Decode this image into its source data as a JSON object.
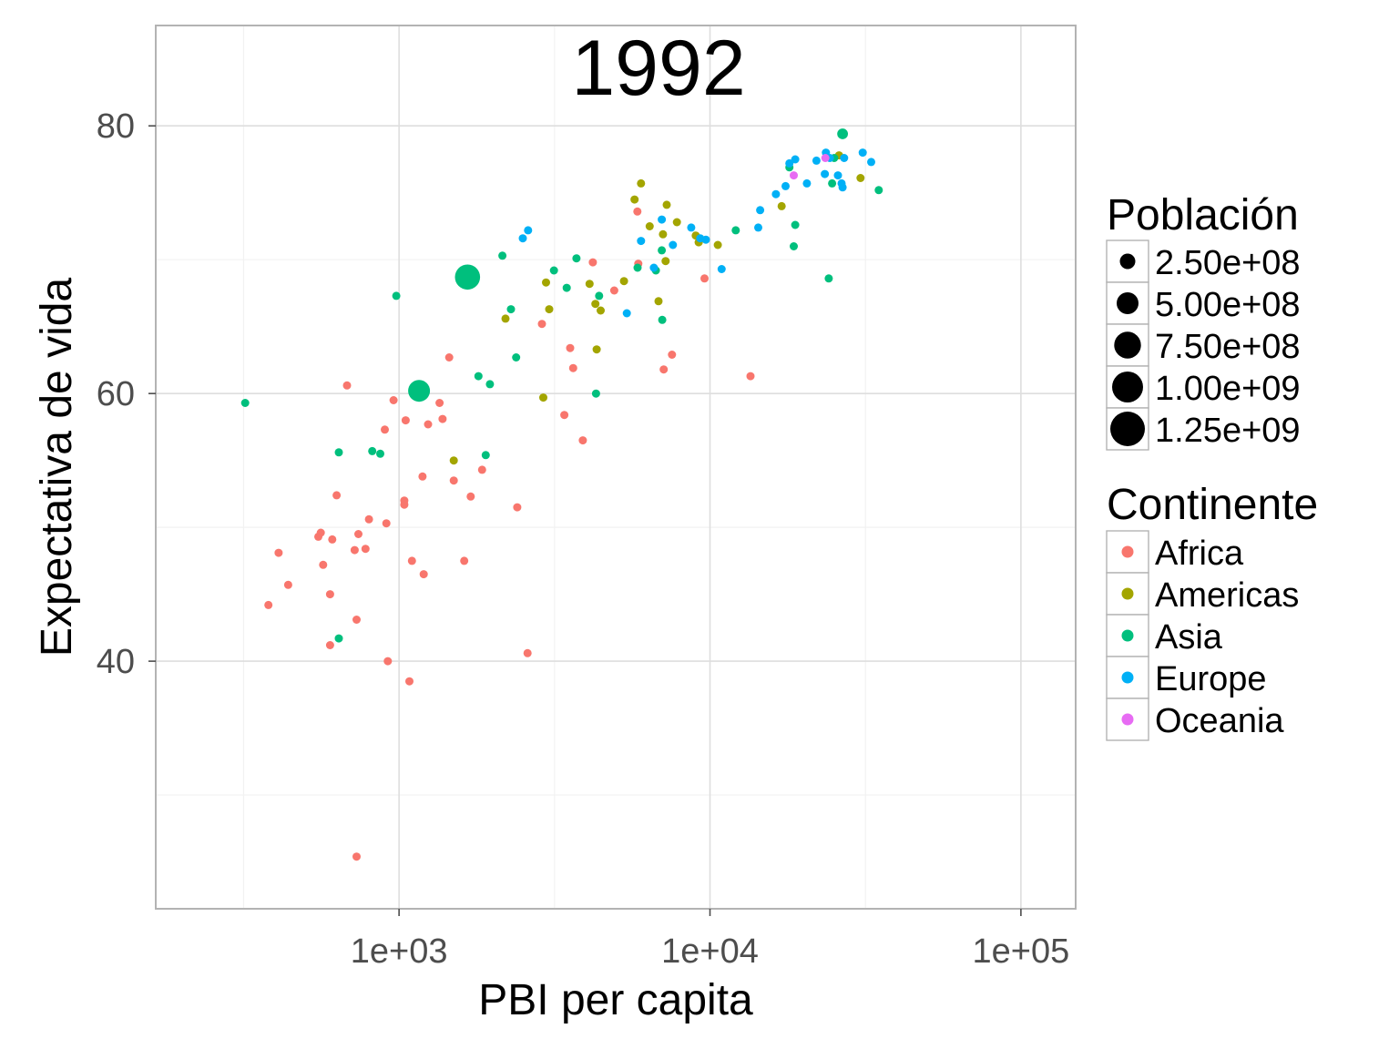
{
  "chart_data": {
    "type": "scatter",
    "title": "1992",
    "xlabel": "PBI per capita",
    "ylabel": "Expectativa de vida",
    "x_scale": "log10",
    "xlim": [
      165,
      150000
    ],
    "ylim": [
      21.5,
      87.5
    ],
    "x_ticks": [
      1000,
      10000,
      100000
    ],
    "x_tick_labels": [
      "1e+03",
      "1e+04",
      "1e+05"
    ],
    "y_ticks": [
      40,
      60,
      80
    ],
    "y_tick_labels": [
      "40",
      "60",
      "80"
    ],
    "grid": true,
    "legend_placement": "right",
    "size_legend": {
      "title": "Población",
      "values": [
        250000000,
        500000000,
        750000000,
        1000000000,
        1250000000
      ],
      "labels": [
        "2.50e+08",
        "5.00e+08",
        "7.50e+08",
        "1.00e+09",
        "1.25e+09"
      ]
    },
    "color_legend": {
      "title": "Continente",
      "entries": [
        {
          "label": "Africa",
          "color": "#F8766D"
        },
        {
          "label": "Americas",
          "color": "#A3A500"
        },
        {
          "label": "Asia",
          "color": "#00BF7D"
        },
        {
          "label": "Europe",
          "color": "#00B0F6"
        },
        {
          "label": "Oceania",
          "color": "#E76BF3"
        }
      ]
    },
    "series": [
      {
        "name": "Africa",
        "color": "#F8766D",
        "points": [
          [
            730,
            25.4,
            6
          ],
          [
            380,
            44.2,
            14
          ],
          [
            410,
            48.1,
            22
          ],
          [
            440,
            45.7,
            25
          ],
          [
            550,
            49.3,
            20
          ],
          [
            560,
            49.6,
            10
          ],
          [
            570,
            47.2,
            12
          ],
          [
            600,
            45.0,
            9
          ],
          [
            600,
            41.2,
            12
          ],
          [
            610,
            49.1,
            11
          ],
          [
            630,
            52.4,
            5
          ],
          [
            680,
            60.6,
            12
          ],
          [
            720,
            48.3,
            9
          ],
          [
            730,
            43.1,
            6
          ],
          [
            740,
            49.5,
            5
          ],
          [
            780,
            48.4,
            8
          ],
          [
            800,
            50.6,
            13
          ],
          [
            900,
            57.3,
            10
          ],
          [
            910,
            50.3,
            10
          ],
          [
            920,
            40.0,
            12
          ],
          [
            960,
            59.5,
            4
          ],
          [
            1040,
            51.7,
            13
          ],
          [
            1040,
            52.0,
            12
          ],
          [
            1050,
            58.0,
            6
          ],
          [
            1080,
            38.5,
            3
          ],
          [
            1100,
            47.5,
            4
          ],
          [
            1190,
            53.8,
            10
          ],
          [
            1200,
            46.5,
            4
          ],
          [
            1240,
            57.7,
            4
          ],
          [
            1350,
            59.3,
            18
          ],
          [
            1380,
            58.1,
            10
          ],
          [
            1450,
            62.7,
            4
          ],
          [
            1500,
            53.5,
            11
          ],
          [
            1620,
            47.5,
            40
          ],
          [
            1700,
            52.3,
            6
          ],
          [
            1850,
            54.3,
            12
          ],
          [
            2400,
            51.5,
            4
          ],
          [
            2590,
            40.6,
            6
          ],
          [
            2880,
            65.2,
            12
          ],
          [
            3400,
            58.4,
            3
          ],
          [
            3550,
            63.4,
            17
          ],
          [
            3630,
            61.9,
            4
          ],
          [
            3900,
            56.5,
            5
          ],
          [
            4200,
            69.8,
            5
          ],
          [
            4920,
            67.7,
            13
          ],
          [
            5840,
            73.6,
            4
          ],
          [
            5880,
            69.7,
            4
          ],
          [
            7100,
            61.8,
            14
          ],
          [
            7550,
            62.9,
            5
          ],
          [
            9600,
            68.6,
            5
          ],
          [
            13500,
            61.3,
            6
          ]
        ]
      },
      {
        "name": "Americas",
        "color": "#A3A500",
        "points": [
          [
            1500,
            55.0,
            6
          ],
          [
            2200,
            65.6,
            8
          ],
          [
            2910,
            59.7,
            8
          ],
          [
            2970,
            68.3,
            8
          ],
          [
            3040,
            66.3,
            8
          ],
          [
            4100,
            68.2,
            6
          ],
          [
            4280,
            66.7,
            7
          ],
          [
            4320,
            63.3,
            4
          ],
          [
            4450,
            66.2,
            4
          ],
          [
            5290,
            68.4,
            10
          ],
          [
            5720,
            74.5,
            4
          ],
          [
            6000,
            75.7,
            4
          ],
          [
            6400,
            72.5,
            4
          ],
          [
            6830,
            66.9,
            50
          ],
          [
            7060,
            71.9,
            4
          ],
          [
            7200,
            69.9,
            5
          ],
          [
            7260,
            74.1,
            4
          ],
          [
            7830,
            72.8,
            4
          ],
          [
            9000,
            71.8,
            6
          ],
          [
            9200,
            71.3,
            35
          ],
          [
            10600,
            71.1,
            4
          ],
          [
            17000,
            74.0,
            6
          ],
          [
            26000,
            77.8,
            5
          ],
          [
            30500,
            76.1,
            70
          ]
        ]
      },
      {
        "name": "Asia",
        "color": "#00BF7D",
        "points": [
          [
            320,
            59.3,
            5
          ],
          [
            640,
            55.6,
            9
          ],
          [
            640,
            41.7,
            13
          ],
          [
            820,
            55.7,
            17
          ],
          [
            870,
            55.5,
            10
          ],
          [
            980,
            67.3,
            27
          ],
          [
            1160,
            60.2,
            500
          ],
          [
            1660,
            68.7,
            660
          ],
          [
            1800,
            61.3,
            6
          ],
          [
            1900,
            55.4,
            10
          ],
          [
            1960,
            60.7,
            30
          ],
          [
            2150,
            70.3,
            4
          ],
          [
            2290,
            66.3,
            20
          ],
          [
            2380,
            62.7,
            40
          ],
          [
            3150,
            69.2,
            8
          ],
          [
            3460,
            67.9,
            8
          ],
          [
            3720,
            70.1,
            12
          ],
          [
            4300,
            60.0,
            11
          ],
          [
            4400,
            67.3,
            20
          ],
          [
            5850,
            69.4,
            4
          ],
          [
            6700,
            69.2,
            4
          ],
          [
            7000,
            70.7,
            7
          ],
          [
            7020,
            65.5,
            21
          ],
          [
            12100,
            72.2,
            45
          ],
          [
            18000,
            76.9,
            4
          ],
          [
            18600,
            71.0,
            4
          ],
          [
            18800,
            72.6,
            6
          ],
          [
            24100,
            68.6,
            4
          ],
          [
            24700,
            75.7,
            4
          ],
          [
            25100,
            77.6,
            4
          ],
          [
            26700,
            79.4,
            120
          ],
          [
            34900,
            75.2,
            4
          ]
        ]
      },
      {
        "name": "Europe",
        "color": "#00B0F6",
        "points": [
          [
            2500,
            71.6,
            4
          ],
          [
            2600,
            72.2,
            4
          ],
          [
            5400,
            66.0,
            16
          ],
          [
            6000,
            71.4,
            5
          ],
          [
            6600,
            69.4,
            5
          ],
          [
            7000,
            73.0,
            4
          ],
          [
            7600,
            71.1,
            10
          ],
          [
            8700,
            72.4,
            4
          ],
          [
            9300,
            71.6,
            5
          ],
          [
            9700,
            71.5,
            14
          ],
          [
            10900,
            69.3,
            5
          ],
          [
            14300,
            72.4,
            6
          ],
          [
            14500,
            73.7,
            4
          ],
          [
            16300,
            74.9,
            5
          ],
          [
            17500,
            75.5,
            4
          ],
          [
            18000,
            77.2,
            8
          ],
          [
            18800,
            77.5,
            10
          ],
          [
            20500,
            75.7,
            4
          ],
          [
            22000,
            77.4,
            20
          ],
          [
            23400,
            76.4,
            60
          ],
          [
            23600,
            78.0,
            4
          ],
          [
            24300,
            77.6,
            6
          ],
          [
            25800,
            76.3,
            4
          ],
          [
            26500,
            75.7,
            55
          ],
          [
            26700,
            75.4,
            5
          ],
          [
            27000,
            77.6,
            4
          ],
          [
            31000,
            78.0,
            4
          ],
          [
            33000,
            77.3,
            4
          ]
        ]
      },
      {
        "name": "Oceania",
        "color": "#E76BF3",
        "points": [
          [
            18600,
            76.3,
            4
          ],
          [
            23500,
            77.6,
            18
          ]
        ]
      }
    ]
  }
}
